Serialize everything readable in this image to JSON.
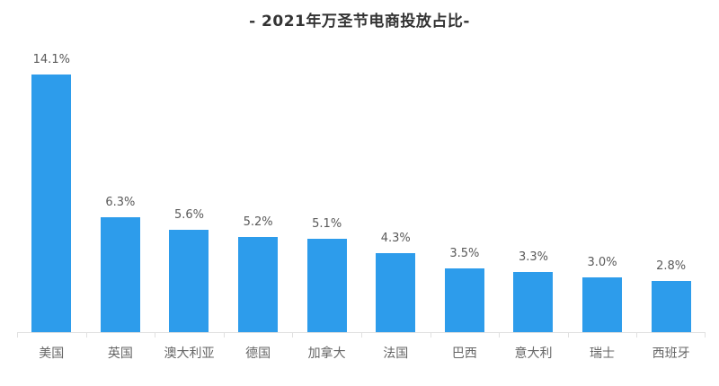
{
  "chart_data": {
    "type": "bar",
    "title": "- 2021年万圣节电商投放占比-",
    "categories": [
      "美国",
      "英国",
      "澳大利亚",
      "德国",
      "加拿大",
      "法国",
      "巴西",
      "意大利",
      "瑞士",
      "西班牙"
    ],
    "values": [
      14.1,
      6.3,
      5.6,
      5.2,
      5.1,
      4.3,
      3.5,
      3.3,
      3.0,
      2.8
    ],
    "value_labels": [
      "14.1%",
      "6.3%",
      "5.6%",
      "5.2%",
      "5.1%",
      "4.3%",
      "3.5%",
      "3.3%",
      "3.0%",
      "2.8%"
    ],
    "unit": "%",
    "xlabel": "",
    "ylabel": "",
    "ylim": [
      0,
      15.7
    ],
    "grid": false,
    "legend": false,
    "y_axis_visible": false,
    "value_labels_position": "above-bars",
    "colors": {
      "bar": "#2D9CEB",
      "axis": "#E0E0E0",
      "value_label": "#595959",
      "category_label": "#666666",
      "title": "#333333",
      "background": "#FFFFFF"
    }
  }
}
